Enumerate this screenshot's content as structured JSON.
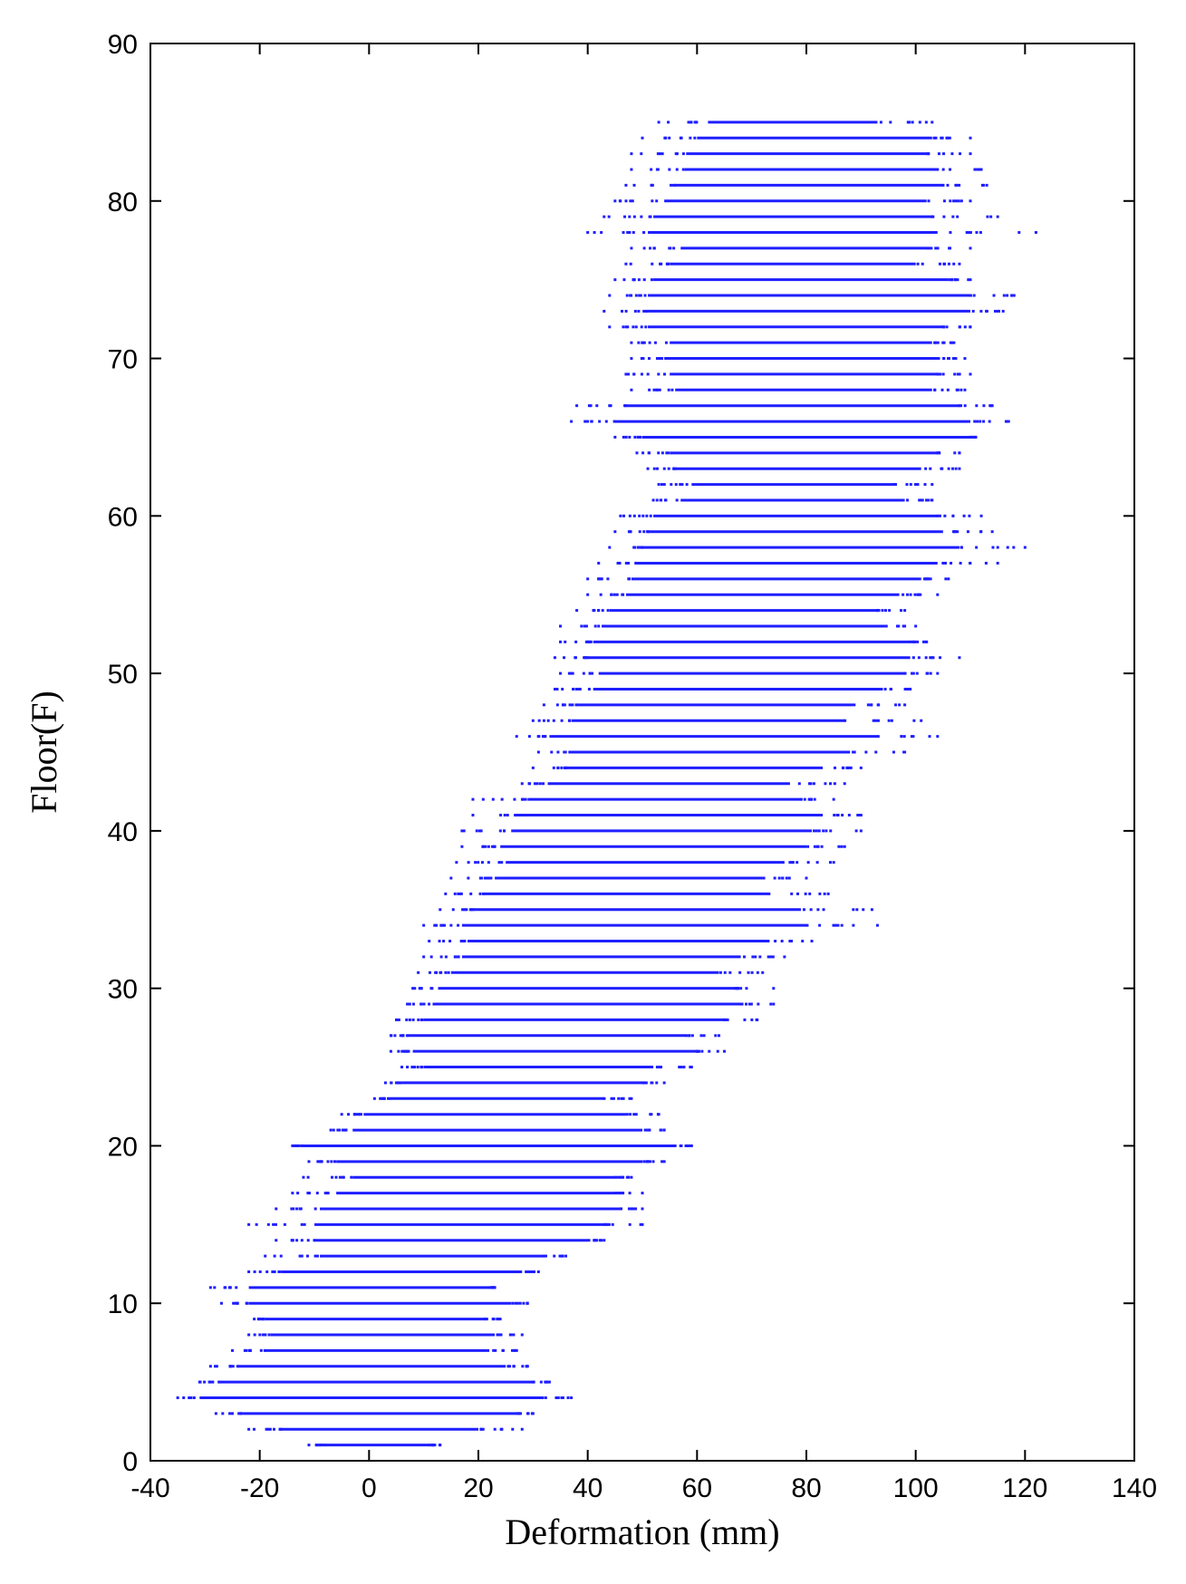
{
  "chart_data": {
    "type": "scatter",
    "title": "",
    "xlabel": "Deformation (mm)",
    "ylabel": "Floor(F)",
    "xlim": [
      -40,
      140
    ],
    "ylim": [
      0,
      90
    ],
    "xticks": [
      -40,
      -20,
      0,
      20,
      40,
      60,
      80,
      100,
      120,
      140
    ],
    "yticks": [
      0,
      10,
      20,
      30,
      40,
      50,
      60,
      70,
      80,
      90
    ],
    "grid": false,
    "marker_color": "#1f1fff",
    "floors": [
      {
        "floor": 1,
        "min": -11,
        "max": 13,
        "core": [
          -8,
          11
        ]
      },
      {
        "floor": 2,
        "min": -22,
        "max": 28,
        "core": [
          -16,
          20
        ]
      },
      {
        "floor": 3,
        "min": -28,
        "max": 30,
        "core": [
          -23,
          27
        ]
      },
      {
        "floor": 4,
        "min": -35,
        "max": 37,
        "core": [
          -31,
          32
        ]
      },
      {
        "floor": 5,
        "min": -31,
        "max": 33,
        "core": [
          -27,
          30
        ]
      },
      {
        "floor": 6,
        "min": -29,
        "max": 29,
        "core": [
          -24,
          25
        ]
      },
      {
        "floor": 7,
        "min": -25,
        "max": 27,
        "core": [
          -19,
          22
        ]
      },
      {
        "floor": 8,
        "min": -22,
        "max": 28,
        "core": [
          -18,
          23
        ]
      },
      {
        "floor": 9,
        "min": -21,
        "max": 24,
        "core": [
          -19,
          21
        ]
      },
      {
        "floor": 10,
        "min": -27,
        "max": 29,
        "core": [
          -22,
          26
        ]
      },
      {
        "floor": 11,
        "min": -29,
        "max": 23,
        "core": [
          -22,
          22
        ]
      },
      {
        "floor": 12,
        "min": -22,
        "max": 31,
        "core": [
          -16,
          28
        ]
      },
      {
        "floor": 13,
        "min": -19,
        "max": 36,
        "core": [
          -9,
          32
        ]
      },
      {
        "floor": 14,
        "min": -17,
        "max": 43,
        "core": [
          -10,
          40
        ]
      },
      {
        "floor": 15,
        "min": -22,
        "max": 50,
        "core": [
          -10,
          43
        ]
      },
      {
        "floor": 16,
        "min": -17,
        "max": 50,
        "core": [
          -9,
          46
        ]
      },
      {
        "floor": 17,
        "min": -14,
        "max": 50,
        "core": [
          -6,
          45
        ]
      },
      {
        "floor": 18,
        "min": -12,
        "max": 48,
        "core": [
          -3,
          45
        ]
      },
      {
        "floor": 19,
        "min": -11,
        "max": 54,
        "core": [
          -6,
          50
        ]
      },
      {
        "floor": 20,
        "min": -14,
        "max": 59,
        "core": [
          -12,
          56
        ]
      },
      {
        "floor": 21,
        "min": -7,
        "max": 54,
        "core": [
          -3,
          50
        ]
      },
      {
        "floor": 22,
        "min": -5,
        "max": 53,
        "core": [
          -1,
          47
        ]
      },
      {
        "floor": 23,
        "min": 1,
        "max": 48,
        "core": [
          4,
          43
        ]
      },
      {
        "floor": 24,
        "min": 3,
        "max": 54,
        "core": [
          6,
          50
        ]
      },
      {
        "floor": 25,
        "min": 6,
        "max": 59,
        "core": [
          10,
          52
        ]
      },
      {
        "floor": 26,
        "min": 4,
        "max": 65,
        "core": [
          8,
          60
        ]
      },
      {
        "floor": 27,
        "min": 4,
        "max": 64,
        "core": [
          7,
          58
        ]
      },
      {
        "floor": 28,
        "min": 5,
        "max": 71,
        "core": [
          10,
          65
        ]
      },
      {
        "floor": 29,
        "min": 7,
        "max": 74,
        "core": [
          12,
          68
        ]
      },
      {
        "floor": 30,
        "min": 8,
        "max": 74,
        "core": [
          13,
          67
        ]
      },
      {
        "floor": 31,
        "min": 9,
        "max": 72,
        "core": [
          15,
          64
        ]
      },
      {
        "floor": 32,
        "min": 10,
        "max": 76,
        "core": [
          17,
          68
        ]
      },
      {
        "floor": 33,
        "min": 11,
        "max": 81,
        "core": [
          18,
          73
        ]
      },
      {
        "floor": 34,
        "min": 10,
        "max": 93,
        "core": [
          17,
          80
        ]
      },
      {
        "floor": 35,
        "min": 13,
        "max": 92,
        "core": [
          19,
          79
        ]
      },
      {
        "floor": 36,
        "min": 14,
        "max": 84,
        "core": [
          21,
          73
        ]
      },
      {
        "floor": 37,
        "min": 15,
        "max": 80,
        "core": [
          23,
          72
        ]
      },
      {
        "floor": 38,
        "min": 16,
        "max": 85,
        "core": [
          25,
          76
        ]
      },
      {
        "floor": 39,
        "min": 17,
        "max": 87,
        "core": [
          24,
          80
        ]
      },
      {
        "floor": 40,
        "min": 17,
        "max": 90,
        "core": [
          26,
          81
        ]
      },
      {
        "floor": 41,
        "min": 19,
        "max": 90,
        "core": [
          28,
          83
        ]
      },
      {
        "floor": 42,
        "min": 19,
        "max": 85,
        "core": [
          29,
          79
        ]
      },
      {
        "floor": 43,
        "min": 28,
        "max": 87,
        "core": [
          33,
          77
        ]
      },
      {
        "floor": 44,
        "min": 30,
        "max": 90,
        "core": [
          36,
          83
        ]
      },
      {
        "floor": 45,
        "min": 31,
        "max": 98,
        "core": [
          37,
          88
        ]
      },
      {
        "floor": 46,
        "min": 27,
        "max": 104,
        "core": [
          33,
          93
        ]
      },
      {
        "floor": 47,
        "min": 30,
        "max": 101,
        "core": [
          37,
          87
        ]
      },
      {
        "floor": 48,
        "min": 32,
        "max": 98,
        "core": [
          38,
          89
        ]
      },
      {
        "floor": 49,
        "min": 34,
        "max": 99,
        "core": [
          41,
          94
        ]
      },
      {
        "floor": 50,
        "min": 35,
        "max": 104,
        "core": [
          42,
          98
        ]
      },
      {
        "floor": 51,
        "min": 34,
        "max": 108,
        "core": [
          40,
          99
        ]
      },
      {
        "floor": 52,
        "min": 35,
        "max": 102,
        "core": [
          41,
          99
        ]
      },
      {
        "floor": 53,
        "min": 35,
        "max": 100,
        "core": [
          43,
          94
        ]
      },
      {
        "floor": 54,
        "min": 38,
        "max": 98,
        "core": [
          44,
          93
        ]
      },
      {
        "floor": 55,
        "min": 40,
        "max": 104,
        "core": [
          47,
          97
        ]
      },
      {
        "floor": 56,
        "min": 40,
        "max": 106,
        "core": [
          48,
          101
        ]
      },
      {
        "floor": 57,
        "min": 42,
        "max": 115,
        "core": [
          49,
          104
        ]
      },
      {
        "floor": 58,
        "min": 44,
        "max": 120,
        "core": [
          50,
          108
        ]
      },
      {
        "floor": 59,
        "min": 45,
        "max": 114,
        "core": [
          51,
          105
        ]
      },
      {
        "floor": 60,
        "min": 46,
        "max": 112,
        "core": [
          52,
          104
        ]
      },
      {
        "floor": 61,
        "min": 52,
        "max": 103,
        "core": [
          57,
          98
        ]
      },
      {
        "floor": 62,
        "min": 53,
        "max": 103,
        "core": [
          59,
          96
        ]
      },
      {
        "floor": 63,
        "min": 51,
        "max": 108,
        "core": [
          56,
          101
        ]
      },
      {
        "floor": 64,
        "min": 49,
        "max": 108,
        "core": [
          55,
          104
        ]
      },
      {
        "floor": 65,
        "min": 45,
        "max": 111,
        "core": [
          50,
          110
        ]
      },
      {
        "floor": 66,
        "min": 37,
        "max": 117,
        "core": [
          45,
          110
        ]
      },
      {
        "floor": 67,
        "min": 38,
        "max": 114,
        "core": [
          47,
          108
        ]
      },
      {
        "floor": 68,
        "min": 48,
        "max": 109,
        "core": [
          56,
          103
        ]
      },
      {
        "floor": 69,
        "min": 47,
        "max": 110,
        "core": [
          55,
          104
        ]
      },
      {
        "floor": 70,
        "min": 48,
        "max": 109,
        "core": [
          54,
          104
        ]
      },
      {
        "floor": 71,
        "min": 48,
        "max": 107,
        "core": [
          55,
          103
        ]
      },
      {
        "floor": 72,
        "min": 44,
        "max": 110,
        "core": [
          51,
          105
        ]
      },
      {
        "floor": 73,
        "min": 43,
        "max": 116,
        "core": [
          51,
          110
        ]
      },
      {
        "floor": 74,
        "min": 44,
        "max": 118,
        "core": [
          51,
          110
        ]
      },
      {
        "floor": 75,
        "min": 45,
        "max": 110,
        "core": [
          52,
          106
        ]
      },
      {
        "floor": 76,
        "min": 47,
        "max": 108,
        "core": [
          55,
          100
        ]
      },
      {
        "floor": 77,
        "min": 48,
        "max": 110,
        "core": [
          57,
          102
        ]
      },
      {
        "floor": 78,
        "min": 40,
        "max": 122,
        "core": [
          51,
          104
        ]
      },
      {
        "floor": 79,
        "min": 43,
        "max": 115,
        "core": [
          52,
          103
        ]
      },
      {
        "floor": 80,
        "min": 45,
        "max": 110,
        "core": [
          54,
          102
        ]
      },
      {
        "floor": 81,
        "min": 47,
        "max": 113,
        "core": [
          56,
          105
        ]
      },
      {
        "floor": 82,
        "min": 48,
        "max": 112,
        "core": [
          58,
          104
        ]
      },
      {
        "floor": 83,
        "min": 48,
        "max": 110,
        "core": [
          58,
          102
        ]
      },
      {
        "floor": 84,
        "min": 50,
        "max": 110,
        "core": [
          60,
          103
        ]
      },
      {
        "floor": 85,
        "min": 53,
        "max": 103,
        "core": [
          62,
          93
        ]
      }
    ]
  }
}
